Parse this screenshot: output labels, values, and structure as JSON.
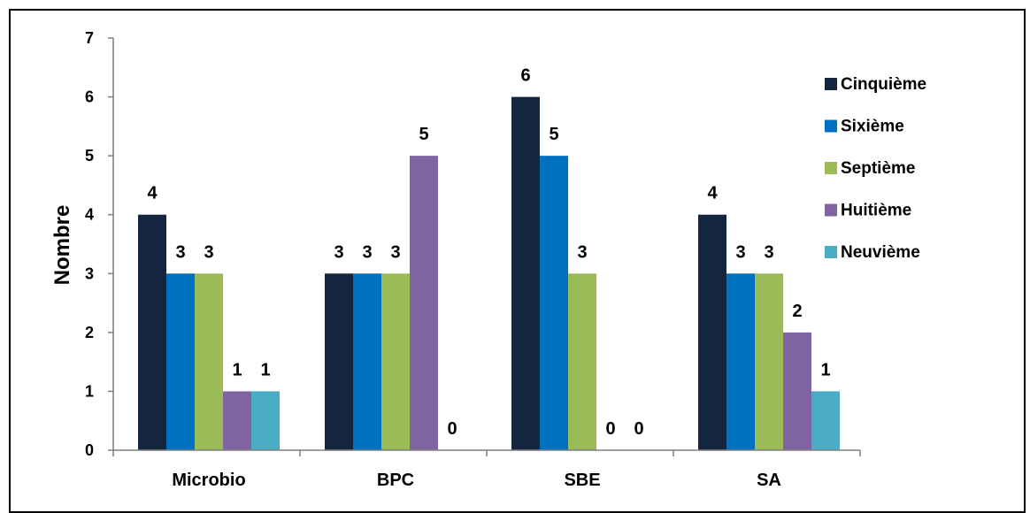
{
  "chart_data": {
    "type": "bar",
    "title": "",
    "xlabel": "",
    "ylabel": "Nombre",
    "ylim": [
      0,
      7
    ],
    "yticks": [
      "0",
      "1",
      "2",
      "3",
      "4",
      "5",
      "6",
      "7"
    ],
    "categories": [
      "Microbio",
      "BPC",
      "SBE",
      "SA"
    ],
    "series": [
      {
        "name": "Cinquième",
        "color": "#13253F",
        "values": [
          4,
          3,
          6,
          4
        ]
      },
      {
        "name": "Sixième",
        "color": "#0070C0",
        "values": [
          3,
          3,
          5,
          3
        ]
      },
      {
        "name": "Septième",
        "color": "#9BBB59",
        "values": [
          3,
          3,
          3,
          3
        ]
      },
      {
        "name": "Huitième",
        "color": "#8064A2",
        "values": [
          1,
          5,
          0,
          2
        ]
      },
      {
        "name": "Neuvième",
        "color": "#4BACC6",
        "values": [
          1,
          0,
          0,
          1
        ]
      }
    ],
    "data_labels": [
      [
        "4",
        "3",
        "3",
        "1",
        "1"
      ],
      [
        "3",
        "3",
        "3",
        "5",
        "0"
      ],
      [
        "6",
        "5",
        "3",
        "0",
        "0"
      ],
      [
        "4",
        "3",
        "3",
        "2",
        "1"
      ]
    ],
    "grid": false,
    "legend": "right"
  }
}
